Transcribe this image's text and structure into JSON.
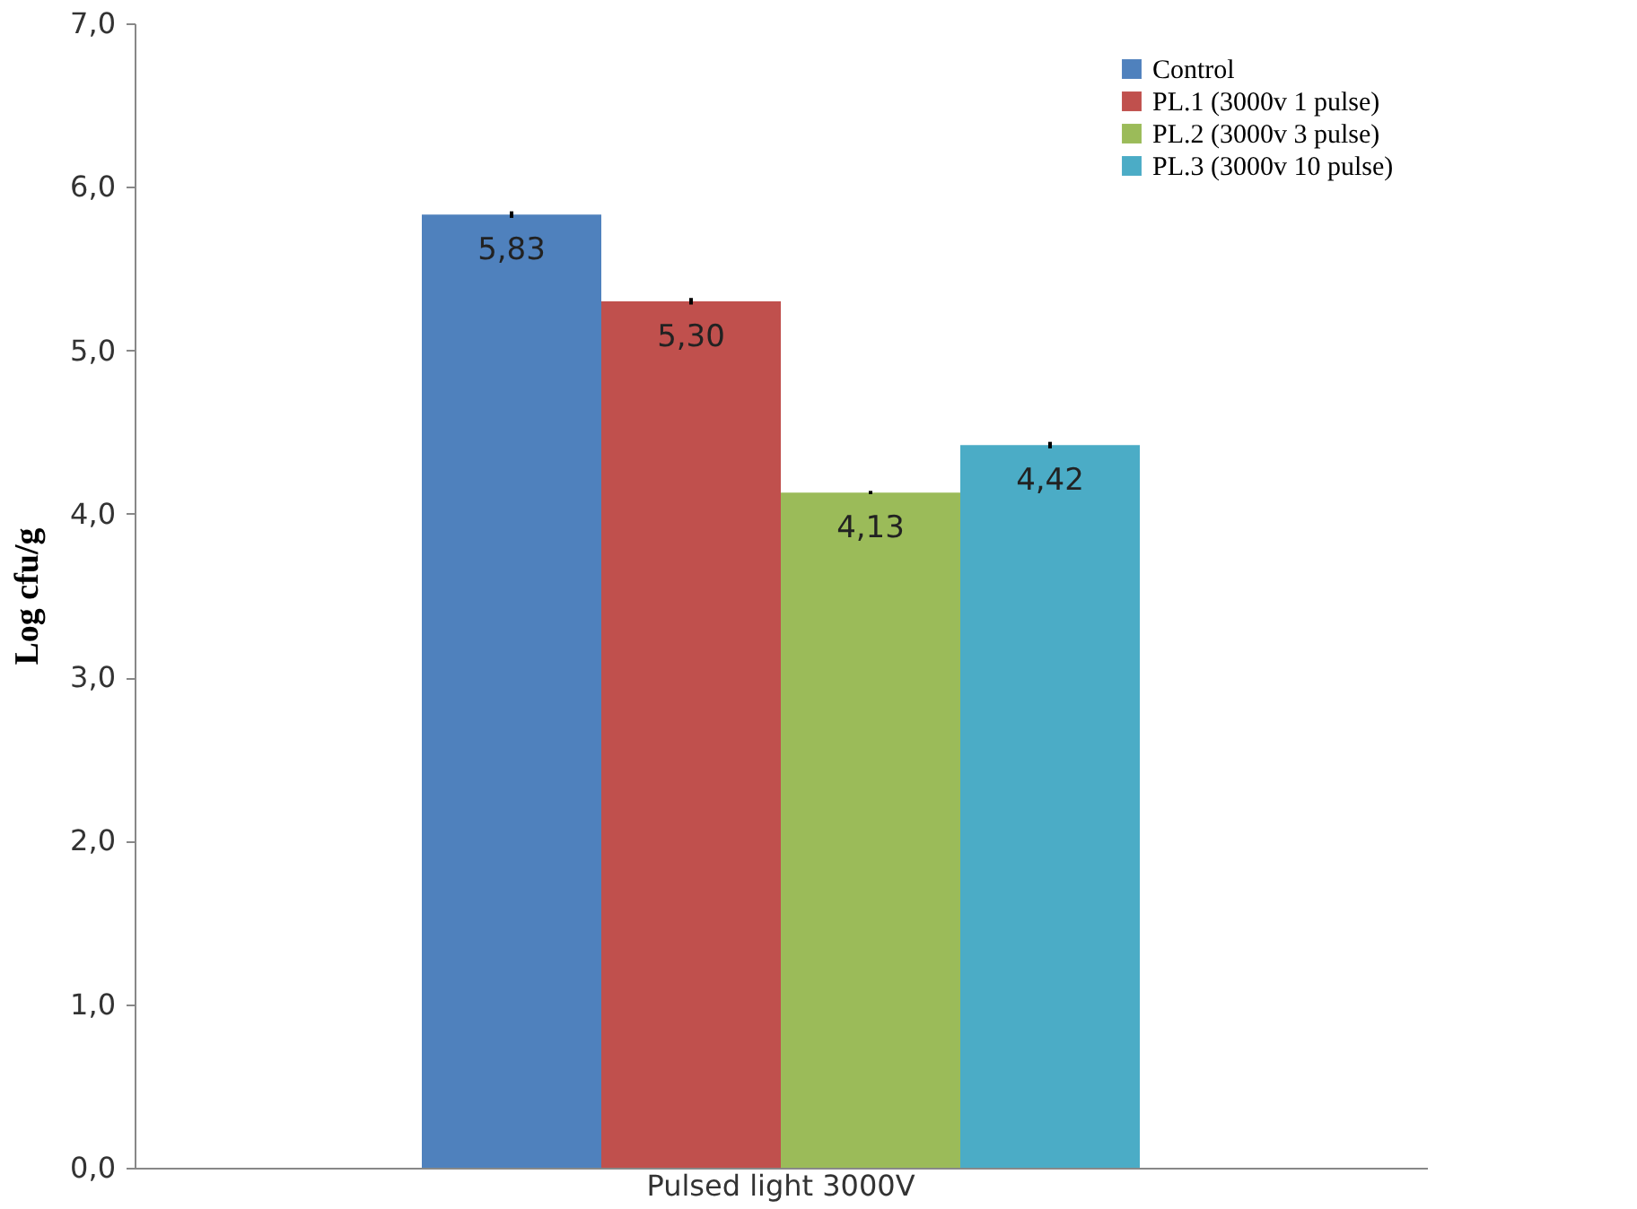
{
  "chart_data": {
    "type": "bar",
    "ylabel": "Log cfu/g",
    "categories": [
      "Pulsed light 3000V"
    ],
    "series": [
      {
        "name": "Control",
        "color": "#4f81bd",
        "values": [
          5.83
        ],
        "errors": [
          0.02
        ],
        "value_labels": [
          "5,83"
        ]
      },
      {
        "name": "PL.1 (3000v 1 pulse)",
        "color": "#c0504d",
        "values": [
          5.3
        ],
        "errors": [
          0.02
        ],
        "value_labels": [
          "5,30"
        ]
      },
      {
        "name": "PL.2 (3000v 3 pulse)",
        "color": "#9bbb59",
        "values": [
          4.13
        ],
        "errors": [
          0.01
        ],
        "value_labels": [
          "4,13"
        ]
      },
      {
        "name": "PL.3 (3000v 10 pulse)",
        "color": "#4bacc6",
        "values": [
          4.42
        ],
        "errors": [
          0.02
        ],
        "value_labels": [
          "4,42"
        ]
      }
    ],
    "ylim": [
      0,
      7
    ],
    "yticks": [
      {
        "value": 0,
        "label": "0,0"
      },
      {
        "value": 1,
        "label": "1,0"
      },
      {
        "value": 2,
        "label": "2,0"
      },
      {
        "value": 3,
        "label": "3,0"
      },
      {
        "value": 4,
        "label": "4,0"
      },
      {
        "value": 5,
        "label": "5,0"
      },
      {
        "value": 6,
        "label": "6,0"
      },
      {
        "value": 7,
        "label": "7,0"
      }
    ],
    "grid": false,
    "legend": "top right"
  }
}
